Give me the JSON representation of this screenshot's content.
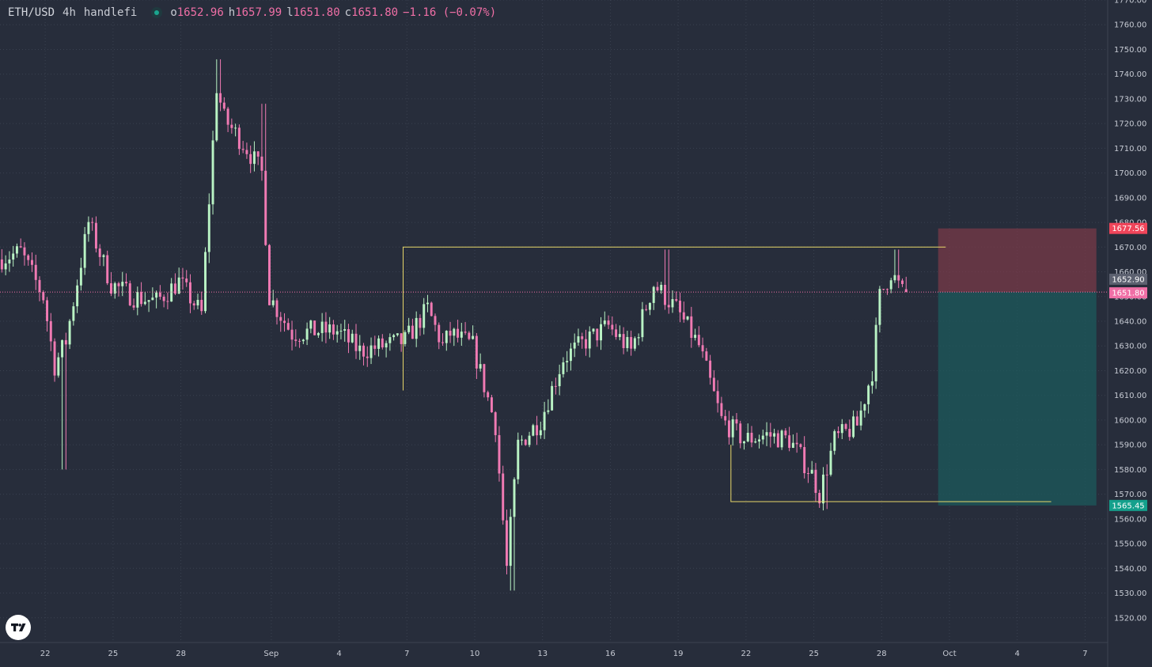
{
  "legend": {
    "symbol": "ETH/USD",
    "interval": "4h",
    "author": "handlefi",
    "open_label": "o",
    "open": "1652.96",
    "high_label": "h",
    "high": "1657.99",
    "low_label": "l",
    "low": "1651.80",
    "close_label": "c",
    "close": "1651.80",
    "change": "−1.16 (−0.07%)"
  },
  "colors": {
    "background": "#272d3b",
    "grid": "#3a4150",
    "up": "#b9f3c4",
    "down": "#f07ab3",
    "annotation": "#e8d86a",
    "stop_zone": "#7d3a48",
    "target_zone": "#1c5a5c",
    "stop_tag": "#f0455a",
    "target_tag": "#14a08c",
    "price_tag": "#f06fa6",
    "last_tag": "#5c6170"
  },
  "logo_icon": "tradingview-logo-icon",
  "chart_data": {
    "type": "candlestick",
    "interval": "4h",
    "y_axis": {
      "ylim": [
        1510,
        1770
      ],
      "ticks": [
        "1770.00",
        "1760.00",
        "1750.00",
        "1740.00",
        "1730.00",
        "1720.00",
        "1710.00",
        "1700.00",
        "1690.00",
        "1680.00",
        "1670.00",
        "1660.00",
        "1650.00",
        "1640.00",
        "1630.00",
        "1620.00",
        "1610.00",
        "1600.00",
        "1590.00",
        "1580.00",
        "1570.00",
        "1560.00",
        "1550.00",
        "1540.00",
        "1530.00",
        "1520.00"
      ]
    },
    "x_axis": {
      "start_date": "2023-08-20",
      "end_date": "2023-10-08",
      "ticks": [
        {
          "date": "2023-08-22",
          "label": "22"
        },
        {
          "date": "2023-08-25",
          "label": "25"
        },
        {
          "date": "2023-08-28",
          "label": "28"
        },
        {
          "date": "2023-09-01",
          "label": "Sep"
        },
        {
          "date": "2023-09-04",
          "label": "4"
        },
        {
          "date": "2023-09-07",
          "label": "7"
        },
        {
          "date": "2023-09-10",
          "label": "10"
        },
        {
          "date": "2023-09-13",
          "label": "13"
        },
        {
          "date": "2023-09-16",
          "label": "16"
        },
        {
          "date": "2023-09-19",
          "label": "19"
        },
        {
          "date": "2023-09-22",
          "label": "22"
        },
        {
          "date": "2023-09-25",
          "label": "25"
        },
        {
          "date": "2023-09-28",
          "label": "28"
        },
        {
          "date": "2023-10-01",
          "label": "Oct"
        },
        {
          "date": "2023-10-04",
          "label": "4"
        },
        {
          "date": "2023-10-07",
          "label": "7"
        }
      ]
    },
    "price_path": [
      {
        "date": "2023-08-20",
        "price": 1665
      },
      {
        "date": "2023-08-21",
        "price": 1668
      },
      {
        "date": "2023-08-22",
        "price": 1650
      },
      {
        "date": "2023-08-22 12:00",
        "price": 1622
      },
      {
        "date": "2023-08-23",
        "price": 1632
      },
      {
        "date": "2023-08-24",
        "price": 1680
      },
      {
        "date": "2023-08-25",
        "price": 1655
      },
      {
        "date": "2023-08-26",
        "price": 1650
      },
      {
        "date": "2023-08-27",
        "price": 1648
      },
      {
        "date": "2023-08-28",
        "price": 1656
      },
      {
        "date": "2023-08-29",
        "price": 1643
      },
      {
        "date": "2023-08-29 16:00",
        "price": 1735
      },
      {
        "date": "2023-08-30",
        "price": 1722
      },
      {
        "date": "2023-08-31",
        "price": 1710
      },
      {
        "date": "2023-08-31 16:00",
        "price": 1700
      },
      {
        "date": "2023-09-01",
        "price": 1650
      },
      {
        "date": "2023-09-02",
        "price": 1635
      },
      {
        "date": "2023-09-03",
        "price": 1636
      },
      {
        "date": "2023-09-04",
        "price": 1636
      },
      {
        "date": "2023-09-05",
        "price": 1628
      },
      {
        "date": "2023-09-06",
        "price": 1630
      },
      {
        "date": "2023-09-07",
        "price": 1632
      },
      {
        "date": "2023-09-08",
        "price": 1645
      },
      {
        "date": "2023-09-08 16:00",
        "price": 1630
      },
      {
        "date": "2023-09-09",
        "price": 1635
      },
      {
        "date": "2023-09-10",
        "price": 1630
      },
      {
        "date": "2023-09-11",
        "price": 1598
      },
      {
        "date": "2023-09-11 12:00",
        "price": 1540
      },
      {
        "date": "2023-09-12",
        "price": 1590
      },
      {
        "date": "2023-09-13",
        "price": 1600
      },
      {
        "date": "2023-09-14",
        "price": 1625
      },
      {
        "date": "2023-09-15",
        "price": 1632
      },
      {
        "date": "2023-09-16",
        "price": 1638
      },
      {
        "date": "2023-09-17",
        "price": 1628
      },
      {
        "date": "2023-09-18",
        "price": 1655
      },
      {
        "date": "2023-09-19",
        "price": 1645
      },
      {
        "date": "2023-09-20",
        "price": 1630
      },
      {
        "date": "2023-09-21",
        "price": 1600
      },
      {
        "date": "2023-09-22",
        "price": 1592
      },
      {
        "date": "2023-09-23",
        "price": 1594
      },
      {
        "date": "2023-09-24",
        "price": 1592
      },
      {
        "date": "2023-09-25",
        "price": 1578
      },
      {
        "date": "2023-09-25 08:00",
        "price": 1570
      },
      {
        "date": "2023-09-26",
        "price": 1592
      },
      {
        "date": "2023-09-27",
        "price": 1598
      },
      {
        "date": "2023-09-27 16:00",
        "price": 1620
      },
      {
        "date": "2023-09-28",
        "price": 1650
      },
      {
        "date": "2023-09-28 12:00",
        "price": 1660
      },
      {
        "date": "2023-09-29",
        "price": 1651.8
      }
    ],
    "spikes": [
      {
        "date": "2023-08-22 20:00",
        "low": 1580
      },
      {
        "date": "2023-08-29 16:00",
        "high": 1746
      },
      {
        "date": "2023-08-31 16:00",
        "high": 1728
      },
      {
        "date": "2023-09-11 16:00",
        "low": 1531
      },
      {
        "date": "2023-09-18 12:00",
        "high": 1669
      },
      {
        "date": "2023-09-25 12:00",
        "low": 1564
      },
      {
        "date": "2023-09-28 16:00",
        "high": 1669
      }
    ],
    "last_candle": {
      "open": 1652.96,
      "high": 1657.99,
      "low": 1651.8,
      "close": 1651.8
    },
    "annotations": {
      "resistance": {
        "price": 1670,
        "from": "2023-09-06 20:00",
        "to": "2023-09-30 20:00",
        "drop_to": 1612
      },
      "support": {
        "price": 1567,
        "from": "2023-09-21 08:00",
        "to": "2023-10-05 12:00",
        "rise_to": 1590
      }
    },
    "position": {
      "type": "short",
      "entry": 1651.8,
      "stop": 1677.56,
      "target": 1565.45,
      "from": "2023-09-30 12:00",
      "to": "2023-10-07 12:00"
    },
    "price_labels": {
      "stop": "1677.56",
      "last": "1652.90",
      "current": "1651.80",
      "target": "1565.45"
    }
  }
}
